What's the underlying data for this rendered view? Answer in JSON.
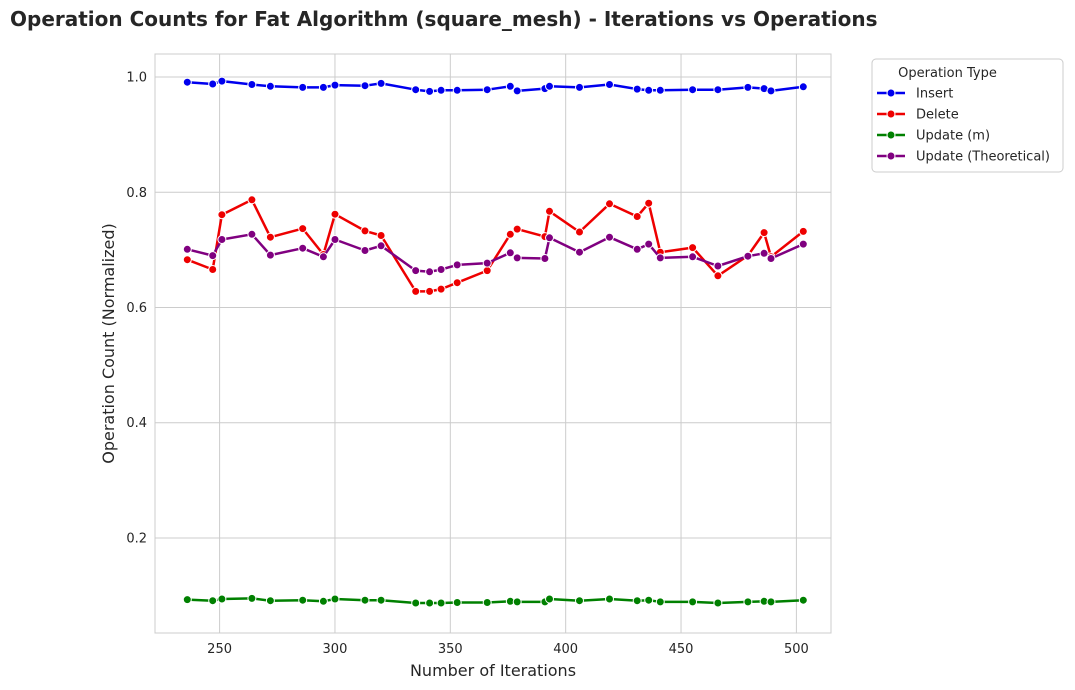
{
  "chart_data": {
    "type": "line",
    "title": "Operation Counts for Fat Algorithm (square_mesh) - Iterations vs Operations",
    "xlabel": "Number of Iterations",
    "ylabel": "Operation Count (Normalized)",
    "xlim": [
      222,
      515
    ],
    "ylim": [
      0.035,
      1.04
    ],
    "xticks": [
      250,
      300,
      350,
      400,
      450,
      500
    ],
    "yticks": [
      0.2,
      0.4,
      0.6,
      0.8,
      1.0
    ],
    "xtick_labels": [
      "250",
      "300",
      "350",
      "400",
      "450",
      "500"
    ],
    "ytick_labels": [
      "0.2",
      "0.4",
      "0.6",
      "0.8",
      "1.0"
    ],
    "grid": true,
    "legend": {
      "title": "Operation Type",
      "placement": "outside-top-right"
    },
    "x": [
      236,
      247,
      251,
      264,
      272,
      286,
      295,
      300,
      313,
      320,
      335,
      341,
      346,
      353,
      366,
      376,
      379,
      391,
      393,
      406,
      419,
      431,
      436,
      441,
      455,
      466,
      479,
      486,
      489,
      503
    ],
    "series": [
      {
        "name": "Insert",
        "color": "#0000ee",
        "values": [
          0.991,
          0.988,
          0.993,
          0.987,
          0.984,
          0.982,
          0.982,
          0.986,
          0.985,
          0.989,
          0.978,
          0.975,
          0.977,
          0.977,
          0.978,
          0.984,
          0.976,
          0.98,
          0.984,
          0.982,
          0.987,
          0.979,
          0.977,
          0.977,
          0.978,
          0.978,
          0.982,
          0.98,
          0.976,
          0.983
        ]
      },
      {
        "name": "Delete",
        "color": "#ee0000",
        "values": [
          0.683,
          0.666,
          0.761,
          0.787,
          0.722,
          0.737,
          0.692,
          0.762,
          0.733,
          0.725,
          0.628,
          0.628,
          0.632,
          0.643,
          0.664,
          0.727,
          0.736,
          0.723,
          0.767,
          0.731,
          0.78,
          0.758,
          0.781,
          0.696,
          0.704,
          0.655,
          0.69,
          0.73,
          0.688,
          0.732
        ]
      },
      {
        "name": "Update (m)",
        "color": "#008000",
        "values": [
          0.093,
          0.091,
          0.094,
          0.095,
          0.091,
          0.092,
          0.09,
          0.094,
          0.092,
          0.092,
          0.087,
          0.087,
          0.087,
          0.088,
          0.088,
          0.09,
          0.089,
          0.089,
          0.094,
          0.091,
          0.094,
          0.091,
          0.092,
          0.089,
          0.089,
          0.087,
          0.089,
          0.09,
          0.089,
          0.092
        ]
      },
      {
        "name": "Update (Theoretical)",
        "color": "#800080",
        "values": [
          0.701,
          0.69,
          0.718,
          0.727,
          0.691,
          0.703,
          0.688,
          0.718,
          0.699,
          0.707,
          0.664,
          0.662,
          0.666,
          0.674,
          0.677,
          0.695,
          0.686,
          0.685,
          0.721,
          0.696,
          0.722,
          0.701,
          0.71,
          0.686,
          0.688,
          0.672,
          0.689,
          0.694,
          0.685,
          0.71
        ]
      }
    ]
  }
}
